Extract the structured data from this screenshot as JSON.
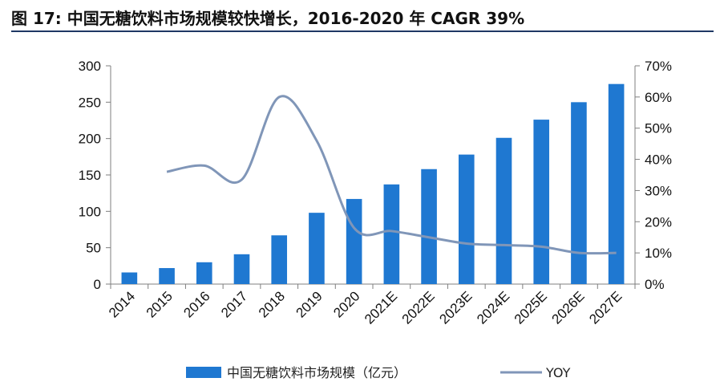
{
  "title": "图 17:  中国无糖饮料市场规模较快增长，2016-2020 年 CAGR 39%",
  "chart_data": {
    "type": "bar",
    "categories": [
      "2014",
      "2015",
      "2016",
      "2017",
      "2018",
      "2019",
      "2020",
      "2021E",
      "2022E",
      "2023E",
      "2024E",
      "2025E",
      "2026E",
      "2027E"
    ],
    "series": [
      {
        "name": "中国无糖饮料市场规模（亿元）",
        "type": "bar",
        "axis": "left",
        "color": "#1f78d1",
        "values": [
          16,
          22,
          30,
          41,
          67,
          98,
          117,
          137,
          158,
          178,
          201,
          226,
          250,
          275
        ]
      },
      {
        "name": "YOY",
        "type": "line",
        "axis": "right",
        "color": "#8096b8",
        "values": [
          null,
          0.36,
          0.38,
          0.335,
          0.6,
          0.46,
          0.18,
          0.17,
          0.15,
          0.13,
          0.125,
          0.12,
          0.1,
          0.1
        ]
      }
    ],
    "y_left": {
      "min": 0,
      "max": 300,
      "ticks": [
        "0",
        "50",
        "100",
        "150",
        "200",
        "250",
        "300"
      ]
    },
    "y_right": {
      "min": 0,
      "max": 0.7,
      "ticks": [
        "0%",
        "10%",
        "20%",
        "30%",
        "40%",
        "50%",
        "60%",
        "70%"
      ]
    },
    "grid": false,
    "legend_position": "bottom"
  }
}
